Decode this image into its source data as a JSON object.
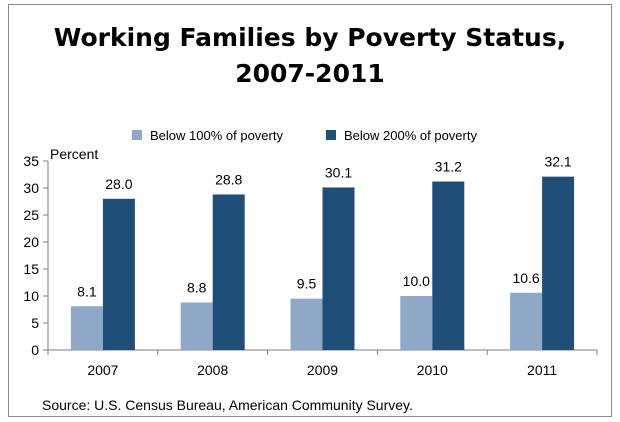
{
  "chart_data": {
    "type": "bar",
    "title_line1": "Working Families by Poverty Status,",
    "title_line2": "2007-2011",
    "y_unit_label": "Percent",
    "source": "Source: U.S. Census Bureau, American Community Survey.",
    "categories": [
      "2007",
      "2008",
      "2009",
      "2010",
      "2011"
    ],
    "series": [
      {
        "name": "Below 100% of poverty",
        "color": "#8fa8c8",
        "values": [
          8.1,
          8.8,
          9.5,
          10.0,
          10.6
        ],
        "labels": [
          "8.1",
          "8.8",
          "9.5",
          "10.0",
          "10.6"
        ]
      },
      {
        "name": "Below 200% of poverty",
        "color": "#1f4e79",
        "values": [
          28.0,
          28.8,
          30.1,
          31.2,
          32.1
        ],
        "labels": [
          "28.0",
          "28.8",
          "30.1",
          "31.2",
          "32.1"
        ]
      }
    ],
    "ylim": [
      0,
      35
    ],
    "yticks": [
      0,
      5,
      10,
      15,
      20,
      25,
      30,
      35
    ],
    "legend_position": "top",
    "grid": false
  }
}
